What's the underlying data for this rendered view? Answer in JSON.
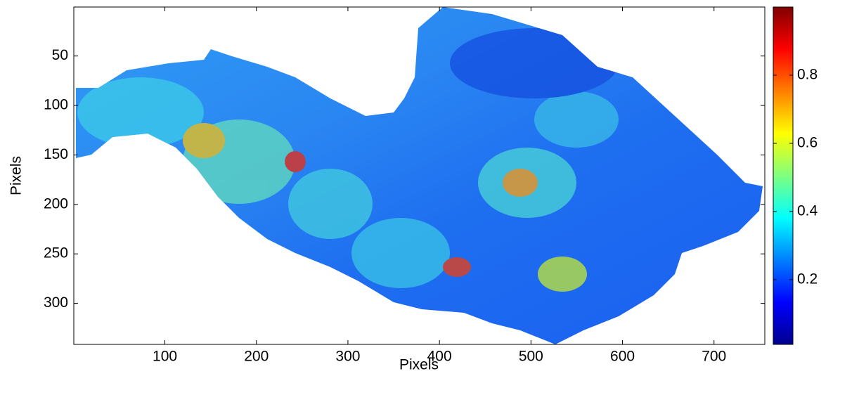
{
  "chart_data": {
    "type": "heatmap",
    "xlabel": "Pixels",
    "ylabel": "Pixels",
    "xlim": [
      0.5,
      755.5
    ],
    "ylim": [
      0.5,
      341.5
    ],
    "y_inverted": true,
    "xticks": [
      100,
      200,
      300,
      400,
      500,
      600,
      700
    ],
    "yticks": [
      50,
      100,
      150,
      200,
      250,
      300
    ],
    "colormap": "jet",
    "clim": [
      0.01,
      1
    ],
    "colorbar_ticks": [
      0.2,
      0.4,
      0.6,
      0.8
    ]
  }
}
